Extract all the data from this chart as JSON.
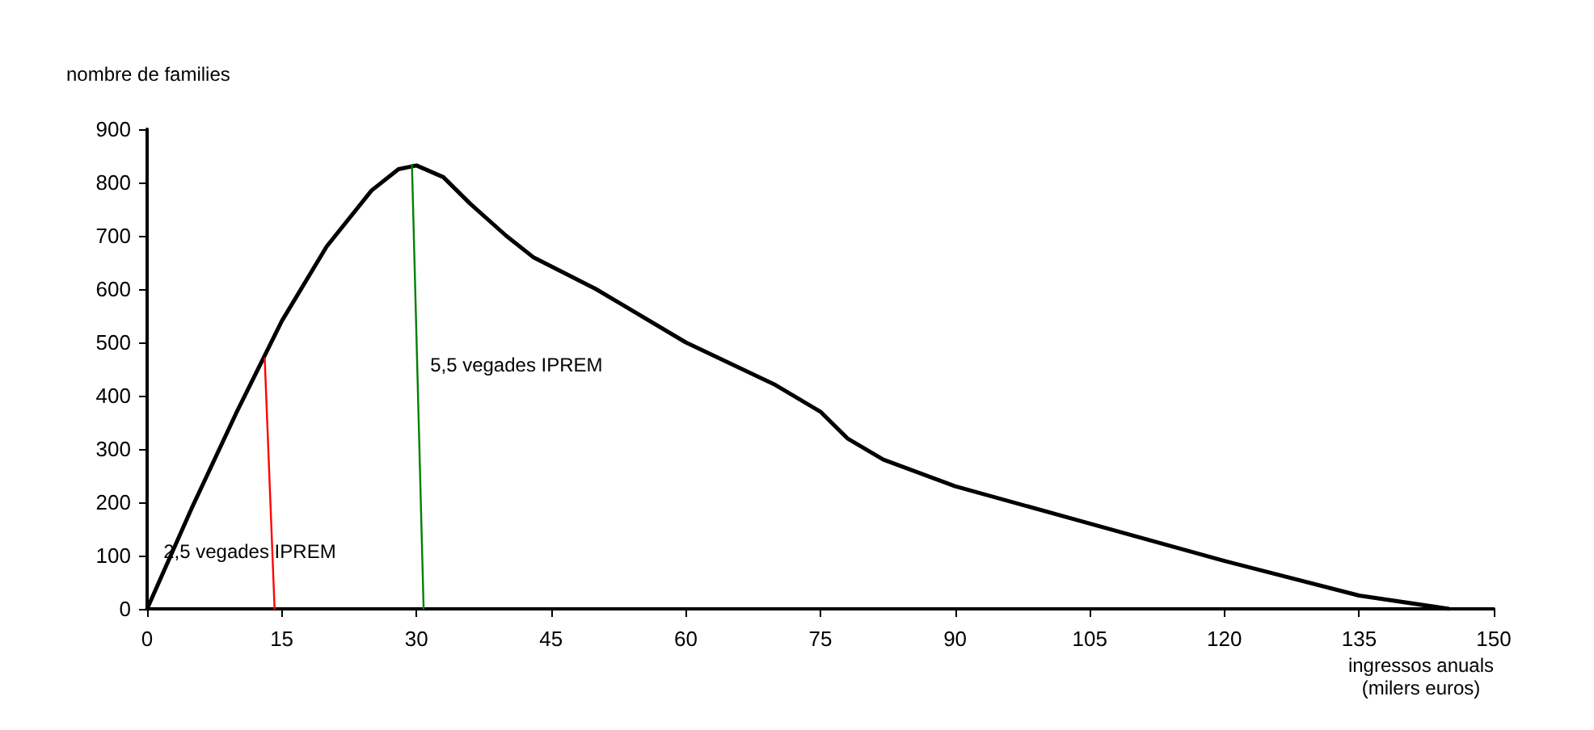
{
  "chart_data": {
    "type": "line",
    "ylabel": "nombre de families",
    "xlabel": "ingressos anuals\n(milers euros)",
    "xlim": [
      0,
      150
    ],
    "xticks": [
      0,
      15,
      30,
      45,
      60,
      75,
      90,
      105,
      120,
      135,
      150
    ],
    "ylim": [
      0,
      900
    ],
    "yticks": [
      0,
      100,
      200,
      300,
      400,
      500,
      600,
      700,
      800,
      900
    ],
    "grid": false,
    "legend": false,
    "marker": "none",
    "line_style": "solid",
    "series": [
      {
        "color": "#000000",
        "x": [
          0,
          5,
          10,
          15,
          20,
          25,
          28,
          30,
          33,
          36,
          40,
          43,
          50,
          60,
          70,
          75,
          78,
          82,
          90,
          105,
          120,
          135,
          145
        ],
        "values": [
          0,
          190,
          370,
          540,
          680,
          785,
          825,
          832,
          810,
          760,
          700,
          660,
          600,
          500,
          420,
          370,
          320,
          280,
          230,
          160,
          90,
          25,
          0
        ]
      },
      {
        "name": "2,5 vegades IPREM",
        "color": "#ff0000",
        "x": [
          13.1,
          14.2
        ],
        "values": [
          470,
          0
        ]
      },
      {
        "name": "5,5 vegades IPREM",
        "color": "#008000",
        "x": [
          29.5,
          30.8
        ],
        "values": [
          833,
          0
        ]
      }
    ]
  }
}
